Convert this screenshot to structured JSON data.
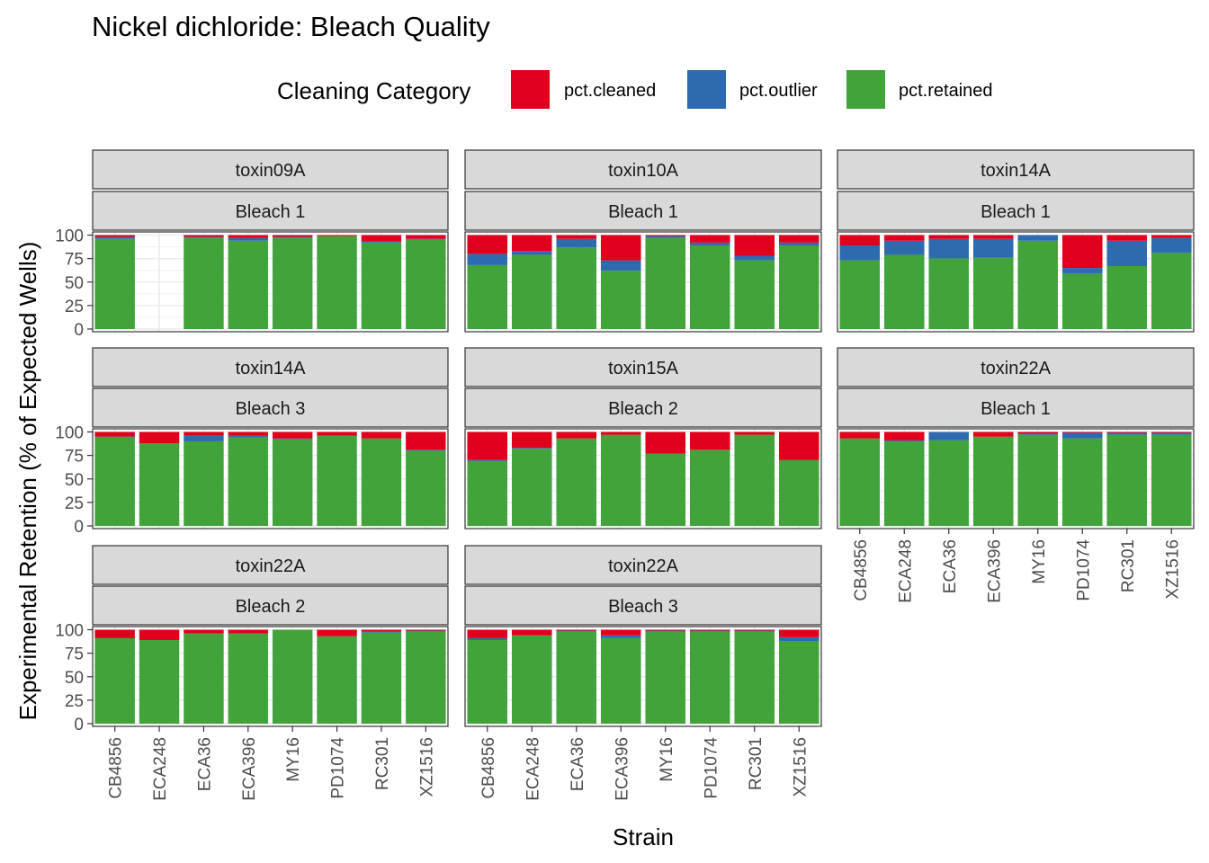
{
  "chart_data": {
    "type": "bar",
    "stacked": true,
    "title": "Nickel dichloride: Bleach Quality",
    "xlabel": "Strain",
    "ylabel": "Experimental Retention (% of Expected Wells)",
    "ylim": [
      0,
      100
    ],
    "yticks": [
      0,
      25,
      50,
      75,
      100
    ],
    "legend": {
      "title": "Cleaning Category",
      "position": "top",
      "items": [
        {
          "key": "cleaned",
          "label": "pct.cleaned",
          "color": "#E0001B"
        },
        {
          "key": "outlier",
          "label": "pct.outlier",
          "color": "#2E6BAE"
        },
        {
          "key": "retained",
          "label": "pct.retained",
          "color": "#41A33A"
        }
      ]
    },
    "categories": [
      "CB4856",
      "ECA248",
      "ECA36",
      "ECA396",
      "MY16",
      "PD1074",
      "RC301",
      "XZ1516"
    ],
    "panels": [
      {
        "strip1": "toxin09A",
        "strip2": "Bleach 1",
        "retained": [
          96,
          null,
          97,
          94,
          97,
          99,
          92,
          95
        ],
        "outlier": [
          2,
          null,
          1,
          3,
          1,
          0,
          1,
          1
        ],
        "cleaned": [
          2,
          null,
          2,
          3,
          2,
          1,
          7,
          4
        ]
      },
      {
        "strip1": "toxin10A",
        "strip2": "Bleach 1",
        "retained": [
          68,
          79,
          87,
          62,
          97,
          89,
          73,
          89
        ],
        "outlier": [
          12,
          4,
          9,
          11,
          2,
          3,
          5,
          3
        ],
        "cleaned": [
          20,
          17,
          4,
          27,
          1,
          8,
          22,
          8
        ]
      },
      {
        "strip1": "toxin14A",
        "strip2": "Bleach 1",
        "retained": [
          73,
          79,
          75,
          76,
          94,
          59,
          67,
          81
        ],
        "outlier": [
          16,
          15,
          21,
          20,
          6,
          6,
          27,
          16
        ],
        "cleaned": [
          11,
          6,
          4,
          4,
          0,
          35,
          6,
          3
        ]
      },
      {
        "strip1": "toxin14A",
        "strip2": "Bleach 3",
        "retained": [
          94,
          88,
          90,
          94,
          92,
          96,
          93,
          80
        ],
        "outlier": [
          1,
          0,
          6,
          2,
          1,
          0,
          0,
          1
        ],
        "cleaned": [
          5,
          12,
          4,
          4,
          7,
          4,
          7,
          19
        ]
      },
      {
        "strip1": "toxin15A",
        "strip2": "Bleach 2",
        "retained": [
          69,
          82,
          93,
          97,
          77,
          81,
          97,
          70
        ],
        "outlier": [
          1,
          1,
          0,
          0,
          0,
          0,
          0,
          0
        ],
        "cleaned": [
          30,
          17,
          7,
          3,
          23,
          19,
          3,
          30
        ]
      },
      {
        "strip1": "toxin22A",
        "strip2": "Bleach 1",
        "retained": [
          93,
          90,
          91,
          95,
          97,
          93,
          97,
          97
        ],
        "outlier": [
          0,
          1,
          9,
          0,
          1,
          6,
          2,
          2
        ],
        "cleaned": [
          7,
          9,
          0,
          5,
          2,
          1,
          1,
          1
        ]
      },
      {
        "strip1": "toxin22A",
        "strip2": "Bleach 2",
        "retained": [
          91,
          89,
          96,
          96,
          100,
          93,
          97,
          98
        ],
        "outlier": [
          0,
          0,
          0,
          0,
          0,
          0,
          1,
          1
        ],
        "cleaned": [
          9,
          11,
          4,
          4,
          0,
          7,
          2,
          1
        ]
      },
      {
        "strip1": "toxin22A",
        "strip2": "Bleach 3",
        "retained": [
          89,
          94,
          98,
          91,
          98,
          98,
          98,
          88
        ],
        "outlier": [
          2,
          0,
          1,
          3,
          1,
          1,
          1,
          4
        ],
        "cleaned": [
          9,
          6,
          1,
          6,
          1,
          1,
          1,
          8
        ]
      }
    ]
  }
}
